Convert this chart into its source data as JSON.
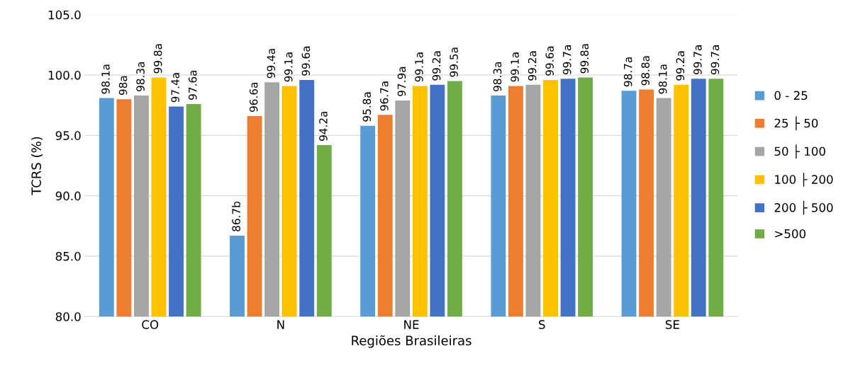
{
  "chart_data": {
    "type": "bar",
    "xlabel": "Regiões Brasileiras",
    "ylabel": "TCRS (%)",
    "categories": [
      "CO",
      "N",
      "NE",
      "S",
      "SE"
    ],
    "series": [
      {
        "name": "0 - 25",
        "color": "#5b9bd5",
        "values": [
          98.1,
          86.7,
          95.8,
          98.3,
          98.7
        ],
        "value_labels": [
          "98.1a",
          "86.7b",
          "95.8a",
          "98.3a",
          "98.7a"
        ]
      },
      {
        "name": "25 ├ 50",
        "color": "#ed7d31",
        "values": [
          98.0,
          96.6,
          96.7,
          99.1,
          98.8
        ],
        "value_labels": [
          "98a",
          "96.6a",
          "96.7a",
          "99.1a",
          "98.8a"
        ]
      },
      {
        "name": "50 ├ 100",
        "color": "#a5a5a5",
        "values": [
          98.3,
          99.4,
          97.9,
          99.2,
          98.1
        ],
        "value_labels": [
          "98.3a",
          "99.4a",
          "97.9a",
          "99.2a",
          "98.1a"
        ]
      },
      {
        "name": "100 ├ 200",
        "color": "#ffc000",
        "values": [
          99.8,
          99.1,
          99.1,
          99.6,
          99.2
        ],
        "value_labels": [
          "99.8a",
          "99.1a",
          "99.1a",
          "99.6a",
          "99.2a"
        ]
      },
      {
        "name": "200 ├ 500",
        "color": "#4472c4",
        "values": [
          97.4,
          99.6,
          99.2,
          99.7,
          99.7
        ],
        "value_labels": [
          "97.4a",
          "99.6a",
          "99.2a",
          "99.7a",
          "99.7a"
        ]
      },
      {
        "name": ">500",
        "color": "#70ad47",
        "values": [
          97.6,
          94.2,
          99.5,
          99.8,
          99.7
        ],
        "value_labels": [
          "97.6a",
          "94.2a",
          "99.5a",
          "99.8a",
          "99.7a"
        ]
      }
    ],
    "ylim": [
      80,
      105
    ],
    "yticks": [
      {
        "value": 80,
        "label": "80.0"
      },
      {
        "value": 85,
        "label": "85.0"
      },
      {
        "value": 90,
        "label": "90.0"
      },
      {
        "value": 95,
        "label": "95.0"
      },
      {
        "value": 100,
        "label": "100.0"
      },
      {
        "value": 105,
        "label": "105.0"
      }
    ],
    "grid": "y",
    "legend": "right"
  }
}
